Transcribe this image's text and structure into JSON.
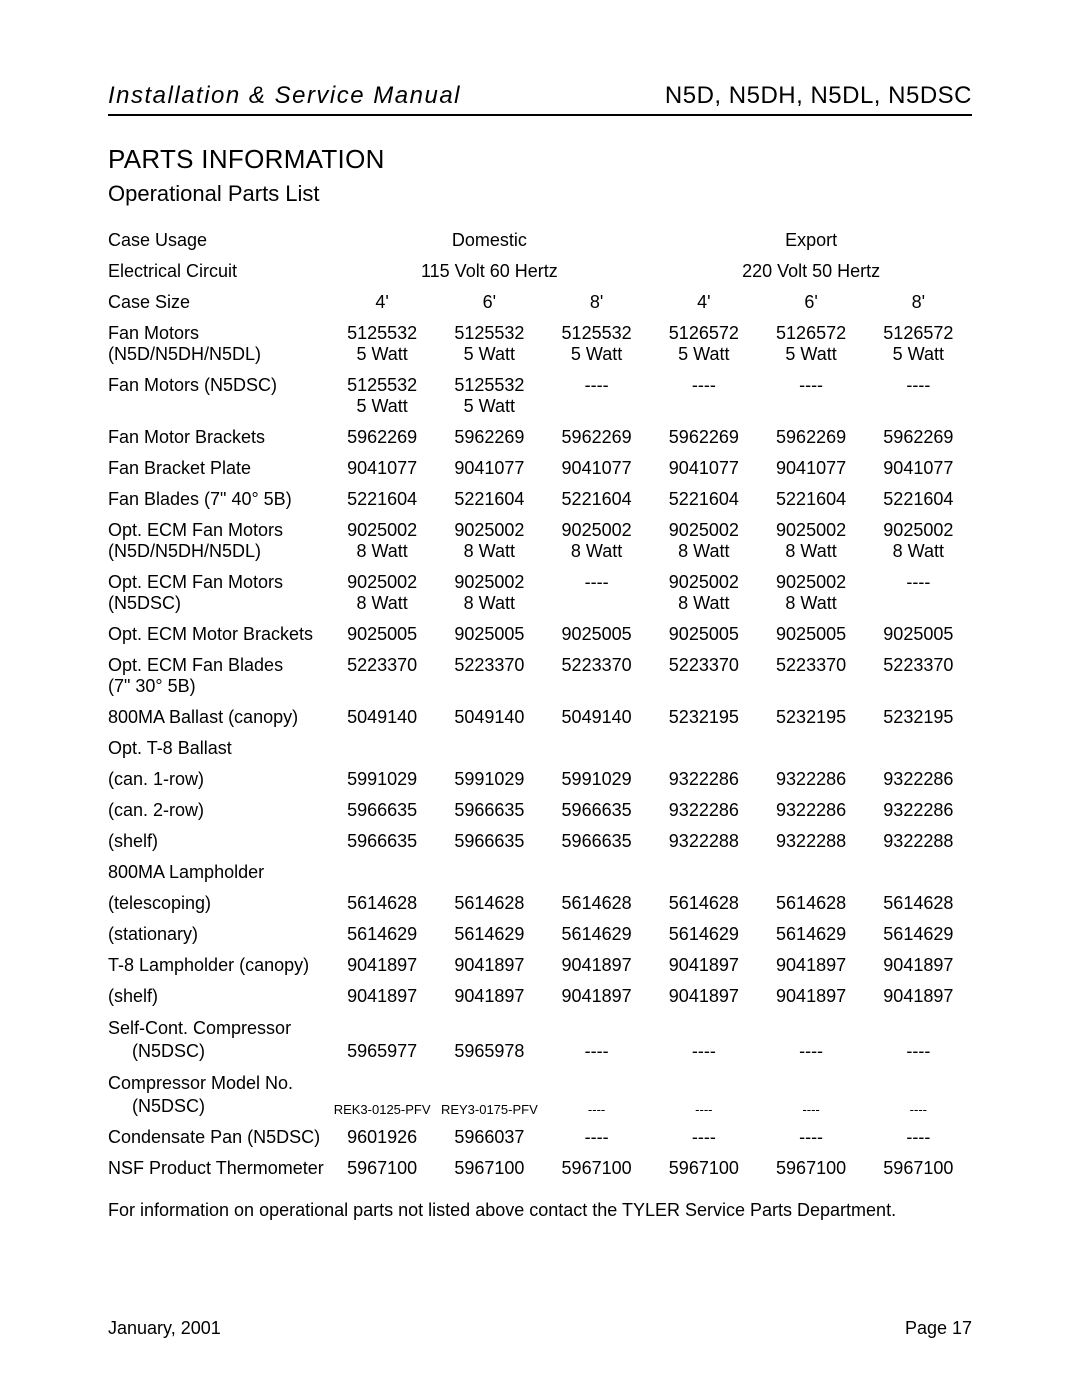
{
  "header": {
    "left": "Installation & Service Manual",
    "right": "N5D, N5DH, N5DL, N5DSC"
  },
  "section": {
    "title": "PARTS INFORMATION",
    "subtitle": "Operational Parts List"
  },
  "group_headers": {
    "domestic": "Domestic",
    "export": "Export",
    "volt_domestic": "115 Volt 60 Hertz",
    "volt_export": "220 Volt 50 Hertz"
  },
  "labels": {
    "case_usage": "Case Usage",
    "electrical_circuit": "Electrical Circuit",
    "case_size": "Case Size"
  },
  "sizes": [
    "4'",
    "6'",
    "8'",
    "4'",
    "6'",
    "8'"
  ],
  "rows": [
    {
      "label": "Fan Motors",
      "label2": "(N5D/N5DH/N5DL)",
      "indent2": true,
      "cells": [
        "5125532",
        "5125532",
        "5125532",
        "5126572",
        "5126572",
        "5126572"
      ],
      "cells2": [
        "5 Watt",
        "5 Watt",
        "5 Watt",
        "5 Watt",
        "5 Watt",
        "5 Watt"
      ]
    },
    {
      "label": "Fan Motors (N5DSC)",
      "cells": [
        "5125532",
        "5125532",
        "----",
        "----",
        "----",
        "----"
      ],
      "cells2": [
        "5 Watt",
        "5 Watt",
        "",
        "",
        "",
        ""
      ]
    },
    {
      "label": "Fan Motor Brackets",
      "cells": [
        "5962269",
        "5962269",
        "5962269",
        "5962269",
        "5962269",
        "5962269"
      ]
    },
    {
      "label": "Fan Bracket Plate",
      "cells": [
        "9041077",
        "9041077",
        "9041077",
        "9041077",
        "9041077",
        "9041077"
      ]
    },
    {
      "label": "Fan Blades (7\" 40° 5B)",
      "cells": [
        "5221604",
        "5221604",
        "5221604",
        "5221604",
        "5221604",
        "5221604"
      ]
    },
    {
      "label": "Opt. ECM Fan Motors",
      "label2": "(N5D/N5DH/N5DL)",
      "indent2": true,
      "cells": [
        "9025002",
        "9025002",
        "9025002",
        "9025002",
        "9025002",
        "9025002"
      ],
      "cells2": [
        "8 Watt",
        "8 Watt",
        "8 Watt",
        "8 Watt",
        "8 Watt",
        "8 Watt"
      ]
    },
    {
      "label": "Opt. ECM Fan Motors",
      "label2": "(N5DSC)",
      "indent2": true,
      "cells": [
        "9025002",
        "9025002",
        "----",
        "9025002",
        "9025002",
        "----"
      ],
      "cells2": [
        "8 Watt",
        "8 Watt",
        "",
        "8 Watt",
        "8 Watt",
        ""
      ]
    },
    {
      "label": "Opt. ECM Motor Brackets",
      "cells": [
        "9025005",
        "9025005",
        "9025005",
        "9025005",
        "9025005",
        "9025005"
      ]
    },
    {
      "label": "Opt. ECM Fan Blades",
      "label2": "(7\" 30° 5B)",
      "indent2": true,
      "cells": [
        "5223370",
        "5223370",
        "5223370",
        "5223370",
        "5223370",
        "5223370"
      ]
    },
    {
      "label": "800MA Ballast (canopy)",
      "cells": [
        "5049140",
        "5049140",
        "5049140",
        "5232195",
        "5232195",
        "5232195"
      ]
    },
    {
      "label": "Opt. T-8 Ballast"
    },
    {
      "label": "(can. 1-row)",
      "indent": true,
      "cells": [
        "5991029",
        "5991029",
        "5991029",
        "9322286",
        "9322286",
        "9322286"
      ]
    },
    {
      "label": "(can. 2-row)",
      "indent": true,
      "cells": [
        "5966635",
        "5966635",
        "5966635",
        "9322286",
        "9322286",
        "9322286"
      ]
    },
    {
      "label": "(shelf)",
      "indent": true,
      "cells": [
        "5966635",
        "5966635",
        "5966635",
        "9322288",
        "9322288",
        "9322288"
      ]
    },
    {
      "label": "800MA Lampholder"
    },
    {
      "label": "(telescoping)",
      "indent": true,
      "cells": [
        "5614628",
        "5614628",
        "5614628",
        "5614628",
        "5614628",
        "5614628"
      ]
    },
    {
      "label": "(stationary)",
      "indent": true,
      "cells": [
        "5614629",
        "5614629",
        "5614629",
        "5614629",
        "5614629",
        "5614629"
      ]
    },
    {
      "label": "T-8 Lampholder (canopy)",
      "cells": [
        "9041897",
        "9041897",
        "9041897",
        "9041897",
        "9041897",
        "9041897"
      ]
    },
    {
      "label": "(shelf)",
      "indent": true,
      "cells": [
        "9041897",
        "9041897",
        "9041897",
        "9041897",
        "9041897",
        "9041897"
      ]
    },
    {
      "label": "Self-Cont. Compressor",
      "label2": "(N5DSC)",
      "indent2": true,
      "label_stacked": true,
      "cells": [
        "5965977",
        "5965978",
        "----",
        "----",
        "----",
        "----"
      ]
    },
    {
      "label": "Compressor Model No.",
      "label2": "(N5DSC)",
      "indent2": true,
      "label_stacked": true,
      "cells": [
        "REK3-0125-PFV",
        "REY3-0175-PFV",
        "----",
        "----",
        "----",
        "----"
      ],
      "small": true
    },
    {
      "label": "Condensate Pan (N5DSC)",
      "cells": [
        "9601926",
        "5966037",
        "----",
        "----",
        "----",
        "----"
      ]
    },
    {
      "label": "NSF Product Thermometer",
      "cells": [
        "5967100",
        "5967100",
        "5967100",
        "5967100",
        "5967100",
        "5967100"
      ]
    }
  ],
  "note": "For information on operational parts not listed above contact the TYLER Service Parts Department.",
  "footer": {
    "date": "January, 2001",
    "page": "Page 17"
  }
}
